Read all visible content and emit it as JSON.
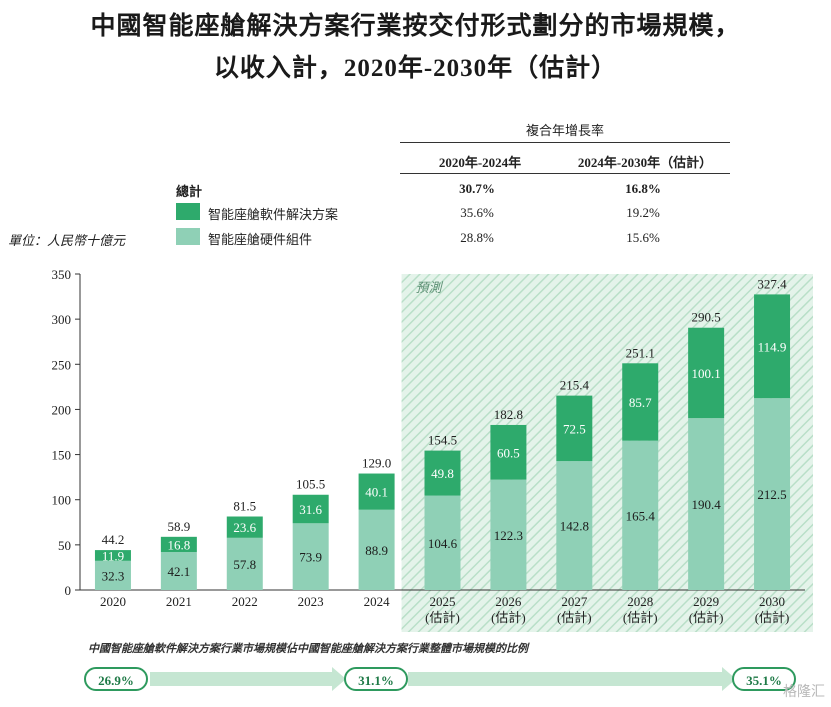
{
  "title": {
    "line1": "中國智能座艙解決方案行業按交付形式劃分的市場規模，",
    "line2": "以收入計，2020年-2030年（估計）"
  },
  "cagr_table": {
    "header": "複合年增長率",
    "col1": "2020年-2024年",
    "col2": "2024年-2030年（估計）",
    "rows": [
      {
        "label": "總計",
        "v1": "30.7%",
        "v2": "16.8%"
      },
      {
        "label": "智能座艙軟件解決方案",
        "v1": "35.6%",
        "v2": "19.2%"
      },
      {
        "label": "智能座艙硬件組件",
        "v1": "28.8%",
        "v2": "15.6%"
      }
    ]
  },
  "unit_label": "單位：人民幣十億元",
  "forecast_label": "預測",
  "colors": {
    "software": "#2eaa6c",
    "hardware": "#8fd0b6",
    "forecast_bg": "#dcefe4",
    "pill_border": "#2e9a5e"
  },
  "chart_data": {
    "type": "bar",
    "stacked": true,
    "categories": [
      "2020",
      "2021",
      "2022",
      "2023",
      "2024",
      "2025\n(估計)",
      "2026\n(估計)",
      "2027\n(估計)",
      "2028\n(估計)",
      "2029\n(估計)",
      "2030\n(估計)"
    ],
    "year_labels": [
      "2020",
      "2021",
      "2022",
      "2023",
      "2024",
      "2025",
      "2026",
      "2027",
      "2028",
      "2029",
      "2030"
    ],
    "estimate_suffix": "(估計)",
    "series": [
      {
        "name": "智能座艙硬件組件",
        "values": [
          32.3,
          42.1,
          57.8,
          73.9,
          88.9,
          104.6,
          122.3,
          142.8,
          165.4,
          190.4,
          212.5
        ]
      },
      {
        "name": "智能座艙軟件解決方案",
        "values": [
          11.9,
          16.8,
          23.6,
          31.6,
          40.1,
          49.8,
          60.5,
          72.5,
          85.7,
          100.1,
          114.9
        ]
      }
    ],
    "totals": [
      "44.2",
      "58.9",
      "81.5",
      "105.5",
      "129.0",
      "154.5",
      "182.8",
      "215.4",
      "251.1",
      "290.5",
      "327.4"
    ],
    "hw_labels": [
      "32.3",
      "42.1",
      "57.8",
      "73.9",
      "88.9",
      "104.6",
      "122.3",
      "142.8",
      "165.4",
      "190.4",
      "212.5"
    ],
    "sw_labels": [
      "11.9",
      "16.8",
      "23.6",
      "31.6",
      "40.1",
      "49.8",
      "60.5",
      "72.5",
      "85.7",
      "100.1",
      "114.9"
    ],
    "yticks": [
      "0",
      "50",
      "100",
      "150",
      "200",
      "250",
      "300",
      "350"
    ],
    "ylim": [
      0,
      350
    ],
    "forecast_start_index": 5,
    "title": "中國智能座艙解決方案行業按交付形式劃分的市場規模，以收入計，2020年-2030年（估計）"
  },
  "share": {
    "title": "中國智能座艙軟件解決方案行業市場規模佔中國智能座艙解決方案行業整體市場規模的比例",
    "values": [
      "26.9%",
      "31.1%",
      "35.1%"
    ]
  },
  "watermark": "格隆汇"
}
